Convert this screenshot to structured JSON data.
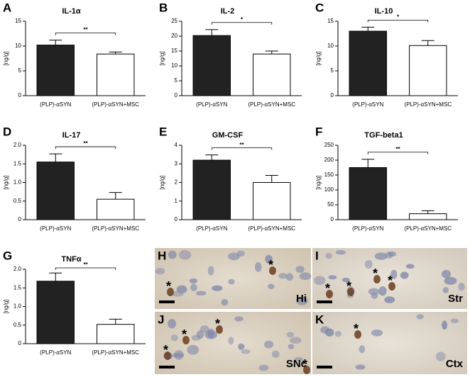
{
  "chart_data": [
    {
      "type": "bar",
      "panel": "A",
      "title": "IL-1α",
      "ylabel": "[ng/g]",
      "categories": [
        "(PLP)-αSYN",
        "(PLP)-αSYN+MSC"
      ],
      "values": [
        10.2,
        8.4
      ],
      "errors": [
        1.0,
        0.4
      ],
      "ylim": [
        0,
        15
      ],
      "yticks": [
        0,
        5,
        10,
        15
      ],
      "significance": "**"
    },
    {
      "type": "bar",
      "panel": "B",
      "title": "IL-2",
      "ylabel": "[ng/g]",
      "categories": [
        "(PLP)-αSYN",
        "(PLP)-αSYN+MSC"
      ],
      "values": [
        20.2,
        14.0
      ],
      "errors": [
        2.0,
        1.0
      ],
      "ylim": [
        0,
        25
      ],
      "yticks": [
        0,
        5,
        10,
        15,
        20,
        25
      ],
      "significance": "*"
    },
    {
      "type": "bar",
      "panel": "C",
      "title": "IL-10",
      "ylabel": "[ng/g]",
      "categories": [
        "(PLP)-αSYN",
        "(PLP)-αSYN+MSC"
      ],
      "values": [
        13.0,
        10.1
      ],
      "errors": [
        0.8,
        1.0
      ],
      "ylim": [
        0,
        15
      ],
      "yticks": [
        0,
        5,
        10,
        15
      ],
      "significance": "*"
    },
    {
      "type": "bar",
      "panel": "D",
      "title": "IL-17",
      "ylabel": "[ng/g]",
      "categories": [
        "(PLP)-αSYN",
        "(PLP)-αSYN+MSC"
      ],
      "values": [
        1.55,
        0.55
      ],
      "errors": [
        0.22,
        0.18
      ],
      "ylim": [
        0,
        2
      ],
      "yticks": [
        0,
        0.5,
        {
          "value": 1,
          "label": "1.0"
        },
        1.5,
        {
          "value": 2,
          "label": "2.0"
        }
      ],
      "significance": "**"
    },
    {
      "type": "bar",
      "panel": "E",
      "title": "GM-CSF",
      "ylabel": "[ng/g]",
      "categories": [
        "(PLP)-αSYN",
        "(PLP)-αSYN+MSC"
      ],
      "values": [
        3.2,
        2.0
      ],
      "errors": [
        0.28,
        0.38
      ],
      "ylim": [
        0,
        4
      ],
      "yticks": [
        0,
        1,
        2,
        3,
        4
      ],
      "significance": "**"
    },
    {
      "type": "bar",
      "panel": "F",
      "title": "TGF-beta1",
      "ylabel": "[ng/g]",
      "categories": [
        "(PLP)-αSYN",
        "(PLP)-αSYN+MSC"
      ],
      "values": [
        175,
        20
      ],
      "errors": [
        28,
        10
      ],
      "ylim": [
        0,
        250
      ],
      "yticks": [
        0,
        50,
        100,
        150,
        200,
        250
      ],
      "significance": "**"
    },
    {
      "type": "bar",
      "panel": "G",
      "title": "TNFα",
      "ylabel": "[ng/g]",
      "categories": [
        "(PLP)-αSYN",
        "(PLP)-αSYN+MSC"
      ],
      "values": [
        1.68,
        0.52
      ],
      "errors": [
        0.22,
        0.14
      ],
      "ylim": [
        0,
        2
      ],
      "yticks": [
        0,
        0.5,
        {
          "value": 1,
          "label": "1.0"
        },
        1.5,
        {
          "value": 2,
          "label": "2.0"
        }
      ],
      "significance": "**"
    }
  ],
  "images": [
    {
      "panel": "H",
      "label": "Hi",
      "markers": [
        "*",
        "*"
      ]
    },
    {
      "panel": "I",
      "label": "Str",
      "markers": [
        "*",
        "*",
        "*",
        "*"
      ]
    },
    {
      "panel": "J",
      "label": "SNc",
      "markers": [
        "*",
        "*",
        "*",
        "*"
      ]
    },
    {
      "panel": "K",
      "label": "Ctx",
      "markers": [
        "*"
      ]
    }
  ]
}
